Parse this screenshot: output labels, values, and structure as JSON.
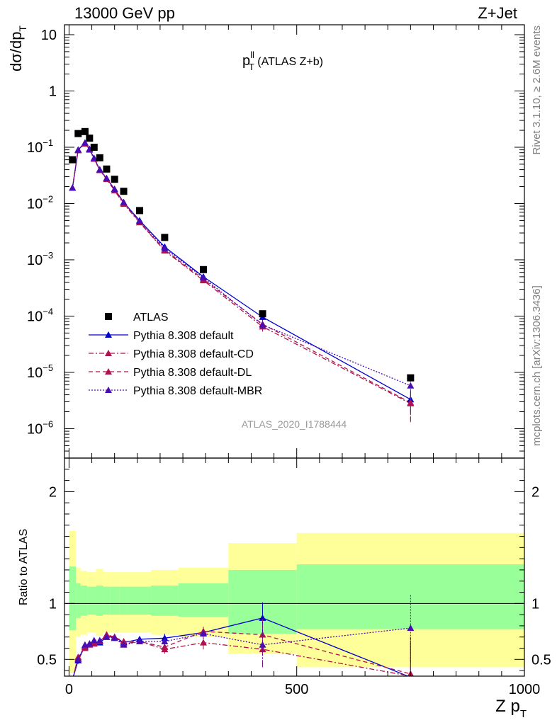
{
  "header": {
    "energy_label": "13000 GeV pp",
    "process_label": "Z+Jet"
  },
  "side_labels": {
    "rivet": "Rivet 3.1.10, ≥ 2.6M events",
    "mcplots": "mcplots.cern.ch [arXiv:1306.3436]"
  },
  "colors": {
    "atlas": "#000000",
    "default": "#0000cc",
    "default_cd": "#b0124e",
    "default_dl": "#b0124e",
    "default_mbr": "#4a0cb4",
    "band_inner": "#99ff99",
    "band_outer": "#ffff99"
  },
  "chart_data": [
    {
      "type": "scatter",
      "title_main": "p",
      "title_sup": "ll",
      "title_sub": "T",
      "title_suffix": " (ATLAS Z+b)",
      "analysis_id": "ATLAS_2020_I1788444",
      "ylabel": {
        "main": "dσ/dp",
        "sub": "T"
      },
      "yscale": "log",
      "ylim": [
        3e-07,
        15
      ],
      "xlim": [
        -10,
        1000
      ],
      "yticks": [
        {
          "value": 10,
          "label": "10"
        },
        {
          "value": 1,
          "label": "1"
        },
        {
          "value": 0.1,
          "label": "10",
          "exp": "−1"
        },
        {
          "value": 0.01,
          "label": "10",
          "exp": "−2"
        },
        {
          "value": 0.001,
          "label": "10",
          "exp": "−3"
        },
        {
          "value": 0.0001,
          "label": "10",
          "exp": "−4"
        },
        {
          "value": 1e-05,
          "label": "10",
          "exp": "−5"
        },
        {
          "value": 1e-06,
          "label": "10",
          "exp": "−6"
        }
      ],
      "legend": {
        "position": "bottom-left",
        "entries": [
          {
            "name": "ATLAS",
            "marker": "square",
            "style": "none"
          },
          {
            "name": "Pythia 8.308 default",
            "marker": "triangle",
            "style": "solid"
          },
          {
            "name": "Pythia 8.308 default-CD",
            "marker": "triangle",
            "style": "dashdot"
          },
          {
            "name": "Pythia 8.308 default-DL",
            "marker": "triangle",
            "style": "dashed"
          },
          {
            "name": "Pythia 8.308 default-MBR",
            "marker": "triangle",
            "style": "dotted"
          }
        ]
      },
      "series": [
        {
          "key": "atlas",
          "name": "ATLAS",
          "x": [
            7.5,
            20,
            35,
            45,
            55,
            67.5,
            82.5,
            100,
            120,
            155,
            210,
            295,
            425,
            750
          ],
          "y": [
            0.06,
            0.175,
            0.19,
            0.145,
            0.1,
            0.065,
            0.041,
            0.027,
            0.0165,
            0.0075,
            0.0025,
            0.00067,
            0.00011,
            8e-06
          ]
        },
        {
          "key": "default",
          "name": "Pythia 8.308 default",
          "x": [
            7.5,
            20,
            35,
            45,
            55,
            67.5,
            82.5,
            100,
            120,
            155,
            210,
            295,
            425,
            750
          ],
          "y": [
            0.019,
            0.09,
            0.12,
            0.093,
            0.064,
            0.04,
            0.028,
            0.018,
            0.0105,
            0.005,
            0.0017,
            0.0005,
            9.6e-05,
            3.3e-06
          ],
          "yerr": [
            0.002,
            0.005,
            0.006,
            0.005,
            0.004,
            0.002,
            0.002,
            0.001,
            0.0007,
            0.0003,
            0.0001,
            3e-05,
            1.2e-05,
            1.5e-06
          ]
        },
        {
          "key": "default_cd",
          "name": "Pythia 8.308 default-CD",
          "x": [
            7.5,
            20,
            35,
            45,
            55,
            67.5,
            82.5,
            100,
            120,
            155,
            210,
            295,
            425,
            750
          ],
          "y": [
            0.019,
            0.088,
            0.115,
            0.09,
            0.062,
            0.039,
            0.027,
            0.017,
            0.0098,
            0.0046,
            0.00145,
            0.00043,
            6.5e-05,
            2.8e-06
          ],
          "yerr": [
            0.002,
            0.005,
            0.006,
            0.005,
            0.004,
            0.002,
            0.002,
            0.001,
            0.0007,
            0.0003,
            0.0001,
            3e-05,
            1.2e-05,
            1.5e-06
          ]
        },
        {
          "key": "default_dl",
          "name": "Pythia 8.308 default-DL",
          "x": [
            7.5,
            20,
            35,
            45,
            55,
            67.5,
            82.5,
            100,
            120,
            155,
            210,
            295,
            425,
            750
          ],
          "y": [
            0.019,
            0.088,
            0.118,
            0.091,
            0.063,
            0.039,
            0.028,
            0.018,
            0.0102,
            0.0047,
            0.0015,
            0.00045,
            7.2e-05,
            2.9e-06
          ],
          "yerr": [
            0.002,
            0.005,
            0.006,
            0.005,
            0.004,
            0.002,
            0.002,
            0.001,
            0.0007,
            0.0003,
            0.0001,
            3e-05,
            1.2e-05,
            1.5e-06
          ]
        },
        {
          "key": "default_mbr",
          "name": "Pythia 8.308 default-MBR",
          "x": [
            7.5,
            20,
            35,
            45,
            55,
            67.5,
            82.5,
            100,
            120,
            155,
            210,
            295,
            425,
            750
          ],
          "y": [
            0.019,
            0.09,
            0.12,
            0.092,
            0.064,
            0.04,
            0.028,
            0.018,
            0.0105,
            0.0049,
            0.0016,
            0.00048,
            7e-05,
            5.8e-06
          ],
          "yerr": [
            0.002,
            0.005,
            0.006,
            0.005,
            0.004,
            0.002,
            0.002,
            0.001,
            0.0007,
            0.0003,
            0.0001,
            3e-05,
            1.2e-05,
            2e-06
          ]
        }
      ]
    },
    {
      "type": "scatter",
      "ylabel": "Ratio to ATLAS",
      "xlabel": {
        "main": "Z p",
        "sub": "T"
      },
      "ylim": [
        0.35,
        2.3
      ],
      "xlim": [
        -10,
        1000
      ],
      "reference_line": 1,
      "yticks": [
        {
          "value": 0.5,
          "label": "0.5"
        },
        {
          "value": 1,
          "label": "1"
        },
        {
          "value": 2,
          "label": "2"
        }
      ],
      "xticks": [
        {
          "value": 0,
          "label": "0"
        },
        {
          "value": 500,
          "label": "500"
        },
        {
          "value": 1000,
          "label": "1000"
        }
      ],
      "bands": [
        {
          "x0": 0,
          "x1": 15,
          "inner": [
            0.76,
            1.33
          ],
          "outer": [
            0.38,
            1.65
          ]
        },
        {
          "x0": 15,
          "x1": 25,
          "inner": [
            0.87,
            1.18
          ],
          "outer": [
            0.7,
            1.32
          ]
        },
        {
          "x0": 25,
          "x1": 40,
          "inner": [
            0.89,
            1.16
          ],
          "outer": [
            0.72,
            1.29
          ]
        },
        {
          "x0": 40,
          "x1": 60,
          "inner": [
            0.9,
            1.15
          ],
          "outer": [
            0.74,
            1.28
          ]
        },
        {
          "x0": 60,
          "x1": 75,
          "inner": [
            0.89,
            1.16
          ],
          "outer": [
            0.71,
            1.31
          ]
        },
        {
          "x0": 75,
          "x1": 90,
          "inner": [
            0.9,
            1.15
          ],
          "outer": [
            0.74,
            1.28
          ]
        },
        {
          "x0": 90,
          "x1": 110,
          "inner": [
            0.9,
            1.15
          ],
          "outer": [
            0.74,
            1.28
          ]
        },
        {
          "x0": 110,
          "x1": 130,
          "inner": [
            0.9,
            1.15
          ],
          "outer": [
            0.74,
            1.28
          ]
        },
        {
          "x0": 130,
          "x1": 180,
          "inner": [
            0.9,
            1.15
          ],
          "outer": [
            0.74,
            1.28
          ]
        },
        {
          "x0": 180,
          "x1": 240,
          "inner": [
            0.89,
            1.16
          ],
          "outer": [
            0.72,
            1.3
          ]
        },
        {
          "x0": 240,
          "x1": 350,
          "inner": [
            0.88,
            1.18
          ],
          "outer": [
            0.7,
            1.32
          ]
        },
        {
          "x0": 350,
          "x1": 500,
          "inner": [
            0.73,
            1.3
          ],
          "outer": [
            0.55,
            1.54
          ]
        },
        {
          "x0": 500,
          "x1": 1000,
          "inner": [
            0.77,
            1.35
          ],
          "outer": [
            0.43,
            1.63
          ]
        }
      ],
      "series": [
        {
          "key": "default",
          "name": "Pythia 8.308 default",
          "x": [
            7.5,
            20,
            35,
            45,
            55,
            67.5,
            82.5,
            100,
            120,
            155,
            210,
            295,
            425,
            750
          ],
          "y": [
            0.32,
            0.49,
            0.62,
            0.64,
            0.66,
            0.65,
            0.7,
            0.7,
            0.65,
            0.68,
            0.69,
            0.74,
            0.87,
            0.34
          ],
          "yerr": [
            0.03,
            0.03,
            0.02,
            0.02,
            0.02,
            0.02,
            0.02,
            0.02,
            0.02,
            0.02,
            0.04,
            0.04,
            0.14,
            0.33
          ]
        },
        {
          "key": "default_cd",
          "name": "Pythia 8.308 default-CD",
          "x": [
            7.5,
            20,
            35,
            45,
            55,
            67.5,
            82.5,
            100,
            120,
            155,
            210,
            295,
            425,
            750
          ],
          "y": [
            0.32,
            0.52,
            0.6,
            0.63,
            0.64,
            0.66,
            0.72,
            0.69,
            0.64,
            0.66,
            0.59,
            0.65,
            0.59,
            0.35
          ],
          "yerr": [
            0.03,
            0.03,
            0.02,
            0.02,
            0.02,
            0.02,
            0.02,
            0.02,
            0.02,
            0.02,
            0.04,
            0.06,
            0.15,
            0.34
          ]
        },
        {
          "key": "default_dl",
          "name": "Pythia 8.308 default-DL",
          "x": [
            7.5,
            20,
            35,
            45,
            55,
            67.5,
            82.5,
            100,
            120,
            155,
            210,
            295,
            425,
            750
          ],
          "y": [
            0.32,
            0.51,
            0.61,
            0.64,
            0.65,
            0.66,
            0.72,
            0.7,
            0.66,
            0.66,
            0.61,
            0.75,
            0.72,
            0.37
          ],
          "yerr": [
            0.03,
            0.03,
            0.02,
            0.02,
            0.02,
            0.02,
            0.02,
            0.02,
            0.02,
            0.02,
            0.04,
            0.06,
            0.14,
            0.33
          ]
        },
        {
          "key": "default_mbr",
          "name": "Pythia 8.308 default-MBR",
          "x": [
            7.5,
            20,
            35,
            45,
            55,
            67.5,
            82.5,
            100,
            120,
            155,
            210,
            295,
            425,
            750
          ],
          "y": [
            0.32,
            0.5,
            0.63,
            0.64,
            0.67,
            0.67,
            0.7,
            0.69,
            0.63,
            0.66,
            0.66,
            0.73,
            0.63,
            0.78
          ],
          "yerr": [
            0.03,
            0.03,
            0.02,
            0.02,
            0.02,
            0.02,
            0.02,
            0.02,
            0.02,
            0.02,
            0.04,
            0.05,
            0.2,
            0.3
          ]
        }
      ]
    }
  ]
}
